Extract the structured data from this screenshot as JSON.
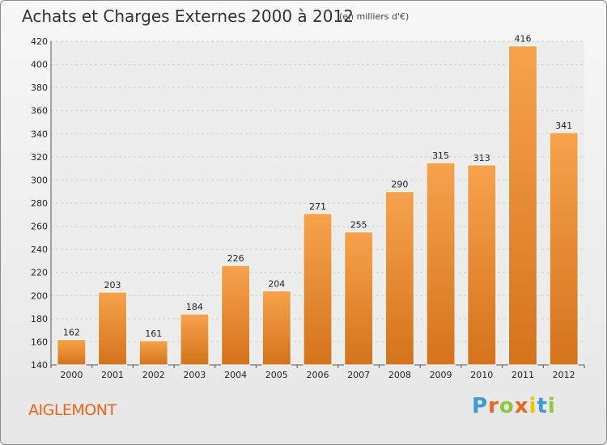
{
  "chart_data": {
    "type": "bar",
    "title": "Achats et Charges Externes 2000 à 2012",
    "subtitle": "(en milliers d'€)",
    "categories": [
      "2000",
      "2001",
      "2002",
      "2003",
      "2004",
      "2005",
      "2006",
      "2007",
      "2008",
      "2009",
      "2010",
      "2011",
      "2012"
    ],
    "values": [
      162,
      203,
      161,
      184,
      226,
      204,
      271,
      255,
      290,
      315,
      313,
      416,
      341
    ],
    "ylim": [
      140,
      420
    ],
    "yticks": [
      140,
      160,
      180,
      200,
      220,
      240,
      260,
      280,
      300,
      320,
      340,
      360,
      380,
      400,
      420
    ],
    "grid": true,
    "bar_color_top": "#f7a24d",
    "bar_color_bottom": "#d4731c"
  },
  "footer": {
    "commune": "AIGLEMONT",
    "logo_letters": [
      "P",
      "r",
      "o",
      "x",
      "i",
      "t",
      "i"
    ],
    "logo_colors": [
      "#3a9ad9",
      "#e8651a",
      "#8dc63f",
      "#e8651a",
      "#f2c200",
      "#3a9ad9",
      "#8dc63f"
    ]
  }
}
